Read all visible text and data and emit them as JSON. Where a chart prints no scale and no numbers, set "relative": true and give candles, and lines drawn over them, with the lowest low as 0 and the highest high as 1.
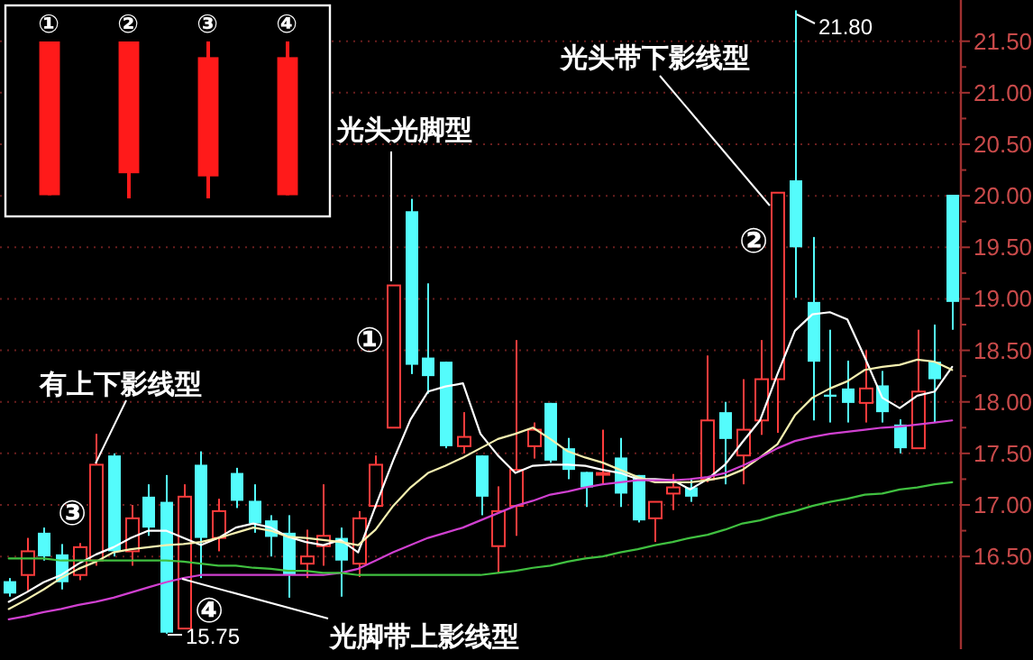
{
  "chart_data": [
    {
      "type": "candlestick",
      "categories": [
        null,
        null,
        null,
        null,
        null,
        null,
        null,
        null,
        null,
        null,
        null,
        null,
        null,
        null,
        null,
        null,
        null,
        null,
        null,
        null,
        null,
        null,
        null,
        null,
        null,
        null,
        null,
        null,
        null,
        null,
        null,
        null,
        null,
        null,
        null,
        null,
        null,
        null,
        null,
        null,
        null,
        null,
        null,
        null,
        null,
        null,
        null,
        null,
        null,
        null,
        null,
        null,
        null,
        null,
        null
      ],
      "ohlc": [
        [
          16.26,
          16.29,
          16.11,
          16.14
        ],
        [
          16.32,
          16.68,
          16.17,
          16.55
        ],
        [
          16.73,
          16.78,
          16.46,
          16.5
        ],
        [
          16.52,
          16.62,
          16.18,
          16.25
        ],
        [
          16.32,
          16.63,
          16.27,
          16.59
        ],
        [
          16.46,
          17.69,
          16.41,
          17.39
        ],
        [
          17.48,
          17.5,
          16.5,
          16.55
        ],
        [
          16.55,
          17.0,
          16.41,
          16.87
        ],
        [
          17.08,
          17.2,
          16.7,
          16.78
        ],
        [
          17.03,
          17.29,
          15.75,
          15.76
        ],
        [
          15.8,
          17.2,
          15.8,
          17.08
        ],
        [
          17.39,
          17.52,
          16.29,
          16.68
        ],
        [
          16.68,
          17.06,
          16.55,
          16.94
        ],
        [
          17.31,
          17.36,
          16.97,
          17.04
        ],
        [
          17.04,
          17.2,
          16.73,
          16.82
        ],
        [
          16.85,
          16.9,
          16.5,
          16.69
        ],
        [
          16.73,
          16.9,
          16.1,
          16.32
        ],
        [
          16.43,
          16.76,
          16.29,
          16.5
        ],
        [
          16.6,
          17.2,
          16.41,
          16.7
        ],
        [
          16.68,
          16.78,
          16.11,
          16.46
        ],
        [
          16.43,
          16.94,
          16.3,
          16.87
        ],
        [
          16.99,
          17.48,
          16.97,
          17.39
        ],
        [
          17.75,
          19.13,
          17.75,
          19.13
        ],
        [
          19.85,
          19.97,
          18.27,
          18.36
        ],
        [
          18.43,
          19.15,
          18.08,
          18.25
        ],
        [
          18.39,
          18.39,
          17.55,
          17.57
        ],
        [
          17.57,
          17.9,
          17.5,
          17.66
        ],
        [
          17.48,
          17.48,
          16.9,
          17.08
        ],
        [
          16.6,
          17.18,
          16.34,
          16.94
        ],
        [
          16.99,
          18.6,
          16.7,
          17.34
        ],
        [
          17.57,
          17.8,
          17.45,
          17.73
        ],
        [
          17.99,
          17.99,
          17.41,
          17.43
        ],
        [
          17.55,
          17.65,
          17.25,
          17.34
        ],
        [
          17.32,
          17.32,
          16.98,
          17.17
        ],
        [
          17.3,
          17.73,
          17.2,
          17.31
        ],
        [
          17.46,
          17.65,
          16.98,
          17.11
        ],
        [
          17.29,
          17.29,
          16.83,
          16.85
        ],
        [
          16.87,
          17.03,
          16.64,
          17.03
        ],
        [
          17.11,
          17.3,
          16.95,
          17.17
        ],
        [
          17.17,
          17.25,
          17.03,
          17.08
        ],
        [
          17.25,
          18.45,
          17.22,
          17.82
        ],
        [
          17.9,
          18.0,
          17.2,
          17.64
        ],
        [
          17.48,
          18.22,
          17.2,
          17.73
        ],
        [
          17.82,
          18.6,
          17.68,
          18.22
        ],
        [
          18.22,
          20.03,
          17.7,
          20.03
        ],
        [
          20.15,
          21.8,
          19.01,
          19.5
        ],
        [
          18.97,
          19.6,
          17.82,
          18.39
        ],
        [
          18.07,
          18.7,
          17.8,
          18.05
        ],
        [
          18.13,
          18.4,
          17.8,
          17.99
        ],
        [
          17.99,
          18.5,
          17.8,
          18.13
        ],
        [
          18.16,
          18.3,
          17.8,
          17.9
        ],
        [
          17.78,
          17.83,
          17.5,
          17.55
        ],
        [
          17.55,
          18.7,
          17.55,
          18.1
        ],
        [
          18.39,
          18.75,
          17.8,
          18.22
        ],
        [
          20.01,
          20.01,
          18.7,
          18.97
        ]
      ],
      "series": [
        {
          "type": "line",
          "color": "#ffffff",
          "values": [
            16.06,
            16.15,
            16.25,
            16.32,
            16.43,
            16.52,
            16.59,
            16.68,
            16.75,
            16.75,
            16.68,
            16.61,
            16.68,
            16.78,
            16.82,
            16.78,
            16.69,
            16.64,
            16.61,
            16.66,
            16.54,
            16.99,
            17.43,
            17.83,
            18.1,
            18.15,
            18.18,
            17.69,
            17.48,
            17.31,
            17.38,
            17.39,
            17.39,
            17.38,
            17.34,
            17.31,
            17.25,
            17.25,
            17.24,
            17.15,
            17.25,
            17.39,
            17.61,
            17.82,
            18.27,
            18.69,
            18.85,
            18.87,
            18.8,
            18.43,
            18.04,
            17.94,
            18.06,
            18.1,
            18.34
          ]
        },
        {
          "type": "line",
          "color": "#f5f0b0",
          "values": [
            15.99,
            16.08,
            16.18,
            16.29,
            16.38,
            16.45,
            16.54,
            16.57,
            16.59,
            16.61,
            16.62,
            16.64,
            16.68,
            16.73,
            16.78,
            16.75,
            16.69,
            16.68,
            16.66,
            16.64,
            16.61,
            16.76,
            16.99,
            17.17,
            17.31,
            17.38,
            17.46,
            17.55,
            17.64,
            17.69,
            17.75,
            17.64,
            17.52,
            17.46,
            17.41,
            17.34,
            17.27,
            17.22,
            17.22,
            17.22,
            17.24,
            17.27,
            17.34,
            17.46,
            17.59,
            17.87,
            18.04,
            18.13,
            18.2,
            18.31,
            18.34,
            18.36,
            18.41,
            18.39,
            18.31
          ]
        },
        {
          "type": "line",
          "color": "#d040d0",
          "values": [
            15.89,
            15.92,
            15.96,
            15.99,
            16.03,
            16.06,
            16.1,
            16.15,
            16.2,
            16.25,
            16.29,
            16.32,
            16.32,
            16.32,
            16.32,
            16.32,
            16.32,
            16.32,
            16.32,
            16.34,
            16.38,
            16.46,
            16.54,
            16.61,
            16.68,
            16.73,
            16.78,
            16.85,
            16.92,
            16.99,
            17.04,
            17.1,
            17.13,
            17.17,
            17.2,
            17.22,
            17.24,
            17.24,
            17.24,
            17.25,
            17.27,
            17.31,
            17.38,
            17.46,
            17.55,
            17.62,
            17.66,
            17.69,
            17.71,
            17.73,
            17.75,
            17.76,
            17.78,
            17.8,
            17.82
          ]
        },
        {
          "type": "line",
          "color": "#40c040",
          "values": [
            16.48,
            16.48,
            16.48,
            16.46,
            16.46,
            16.46,
            16.46,
            16.46,
            16.46,
            16.46,
            16.45,
            16.43,
            16.41,
            16.41,
            16.39,
            16.38,
            16.36,
            16.36,
            16.34,
            16.34,
            16.32,
            16.32,
            16.32,
            16.32,
            16.32,
            16.32,
            16.32,
            16.32,
            16.34,
            16.36,
            16.39,
            16.41,
            16.45,
            16.48,
            16.5,
            16.54,
            16.57,
            16.61,
            16.64,
            16.68,
            16.71,
            16.76,
            16.82,
            16.85,
            16.9,
            16.94,
            16.99,
            17.03,
            17.06,
            17.1,
            17.11,
            17.15,
            17.17,
            17.2,
            17.22
          ]
        }
      ],
      "ylim": [
        15.6,
        21.9
      ],
      "yticks": [
        {
          "value": 16.5,
          "label": "16.50"
        },
        {
          "value": 17,
          "label": "17.00"
        },
        {
          "value": 17.5,
          "label": "17.50"
        },
        {
          "value": 18,
          "label": "18.00"
        },
        {
          "value": 18.5,
          "label": "18.50"
        },
        {
          "value": 19,
          "label": "19.00"
        },
        {
          "value": 19.5,
          "label": "19.50"
        },
        {
          "value": 20,
          "label": "20.00"
        },
        {
          "value": 20.5,
          "label": "20.50"
        },
        {
          "value": 21,
          "label": "21.00"
        },
        {
          "value": 21.5,
          "label": "21.50"
        }
      ],
      "grid": "y",
      "tick_labels": "y",
      "annotations": [
        {
          "text": "光头光脚型"
        },
        {
          "text": "光头带下影线型"
        },
        {
          "text": "有上下影线型"
        },
        {
          "text": "光脚带上影线型"
        },
        {
          "text": "①"
        },
        {
          "text": "②"
        },
        {
          "text": "③"
        },
        {
          "text": "④"
        },
        "21.80",
        "15.75"
      ]
    },
    {
      "type": "candlestick",
      "categories": [
        "①",
        "②",
        "③",
        "④"
      ],
      "relative": true,
      "ohlc": [
        [
          0.02,
          1,
          0.02,
          1
        ],
        [
          0.16,
          1,
          0,
          1
        ],
        [
          0.14,
          1,
          0,
          0.9
        ],
        [
          0.02,
          1,
          0.02,
          0.9
        ]
      ],
      "tick_labels": "x",
      "colors": [
        "#ff1a1a",
        "#ff1a1a",
        "#ff1a1a",
        "#ff1a1a"
      ]
    }
  ]
}
